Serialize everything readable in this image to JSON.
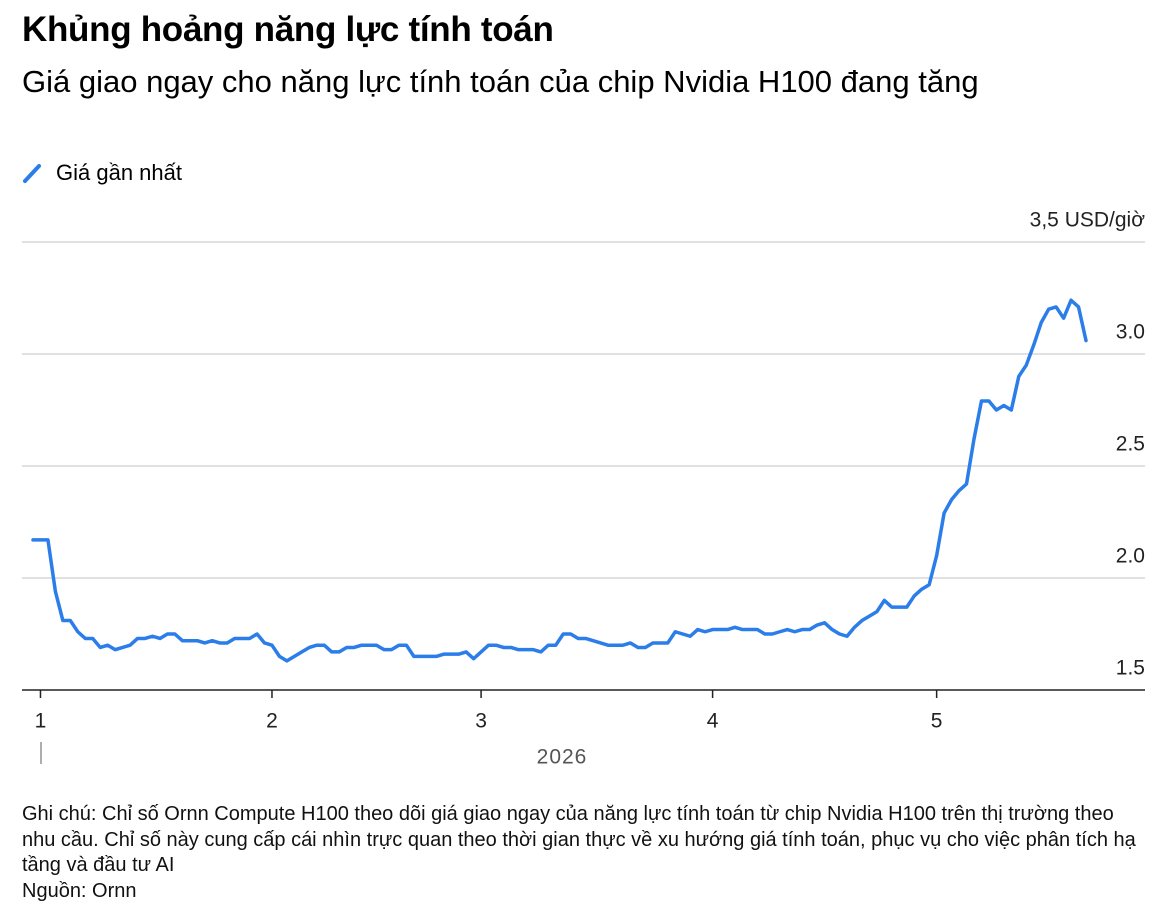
{
  "chart_data": {
    "type": "line",
    "title": "Khủng hoảng năng lực tính toán",
    "subtitle": "Giá giao ngay cho năng lực tính toán của chip Nvidia H100 đang tăng",
    "xlabel": "2026",
    "categories": [
      null,
      "1",
      null,
      null,
      null,
      null,
      null,
      null,
      null,
      null,
      null,
      null,
      null,
      null,
      null,
      null,
      null,
      null,
      null,
      null,
      null,
      null,
      null,
      null,
      null,
      null,
      null,
      null,
      null,
      null,
      null,
      null,
      "2",
      null,
      null,
      null,
      null,
      null,
      null,
      null,
      null,
      null,
      null,
      null,
      null,
      null,
      null,
      null,
      null,
      null,
      null,
      null,
      null,
      null,
      null,
      null,
      null,
      null,
      null,
      null,
      "3",
      null,
      null,
      null,
      null,
      null,
      null,
      null,
      null,
      null,
      null,
      null,
      null,
      null,
      null,
      null,
      null,
      null,
      null,
      null,
      null,
      null,
      null,
      null,
      null,
      null,
      null,
      null,
      null,
      null,
      null,
      "4",
      null,
      null,
      null,
      null,
      null,
      null,
      null,
      null,
      null,
      null,
      null,
      null,
      null,
      null,
      null,
      null,
      null,
      null,
      null,
      null,
      null,
      null,
      null,
      null,
      null,
      null,
      null,
      null,
      null,
      "5",
      null,
      null,
      null,
      null,
      null,
      null,
      null,
      null,
      null,
      null,
      null,
      null,
      null,
      null,
      null,
      null,
      null,
      null,
      null,
      null
    ],
    "series": [
      {
        "name": "Giá gần nhất",
        "color": "#2b7de9",
        "values": [
          2.17,
          2.17,
          2.17,
          1.94,
          1.81,
          1.81,
          1.76,
          1.73,
          1.73,
          1.69,
          1.7,
          1.68,
          1.69,
          1.7,
          1.73,
          1.73,
          1.74,
          1.73,
          1.75,
          1.75,
          1.72,
          1.72,
          1.72,
          1.71,
          1.72,
          1.71,
          1.71,
          1.73,
          1.73,
          1.73,
          1.75,
          1.71,
          1.7,
          1.65,
          1.63,
          1.65,
          1.67,
          1.69,
          1.7,
          1.7,
          1.67,
          1.67,
          1.69,
          1.69,
          1.7,
          1.7,
          1.7,
          1.68,
          1.68,
          1.7,
          1.7,
          1.65,
          1.65,
          1.65,
          1.65,
          1.66,
          1.66,
          1.66,
          1.67,
          1.64,
          1.67,
          1.7,
          1.7,
          1.69,
          1.69,
          1.68,
          1.68,
          1.68,
          1.67,
          1.7,
          1.7,
          1.75,
          1.75,
          1.73,
          1.73,
          1.72,
          1.71,
          1.7,
          1.7,
          1.7,
          1.71,
          1.69,
          1.69,
          1.71,
          1.71,
          1.71,
          1.76,
          1.75,
          1.74,
          1.77,
          1.76,
          1.77,
          1.77,
          1.77,
          1.78,
          1.77,
          1.77,
          1.77,
          1.75,
          1.75,
          1.76,
          1.77,
          1.76,
          1.77,
          1.77,
          1.79,
          1.8,
          1.77,
          1.75,
          1.74,
          1.78,
          1.81,
          1.83,
          1.85,
          1.9,
          1.87,
          1.87,
          1.87,
          1.92,
          1.95,
          1.97,
          2.1,
          2.29,
          2.35,
          2.39,
          2.42,
          2.62,
          2.79,
          2.79,
          2.75,
          2.77,
          2.75,
          2.9,
          2.95,
          3.04,
          3.14,
          3.2,
          3.21,
          3.16,
          3.24,
          3.21,
          3.06
        ]
      }
    ],
    "ylim": [
      1.5,
      3.5
    ],
    "yticks": [
      1.5,
      {
        "value": 2,
        "label": "2.0"
      },
      2.5,
      {
        "value": 3,
        "label": "3.0"
      },
      {
        "value": 3.5,
        "label": "3,5 USD/giờ"
      }
    ],
    "grid": true,
    "note": "Ghi chú: Chỉ số Ornn Compute H100 theo dõi giá giao ngay của năng lực tính toán từ chip Nvidia H100 trên thị trường theo nhu cầu. Chỉ số này cung cấp cái nhìn trực quan theo thời gian thực về xu hướng giá tính toán, phục vụ cho  việc phân tích hạ tầng và đầu tư AI",
    "source": "Nguồn: Ornn"
  }
}
